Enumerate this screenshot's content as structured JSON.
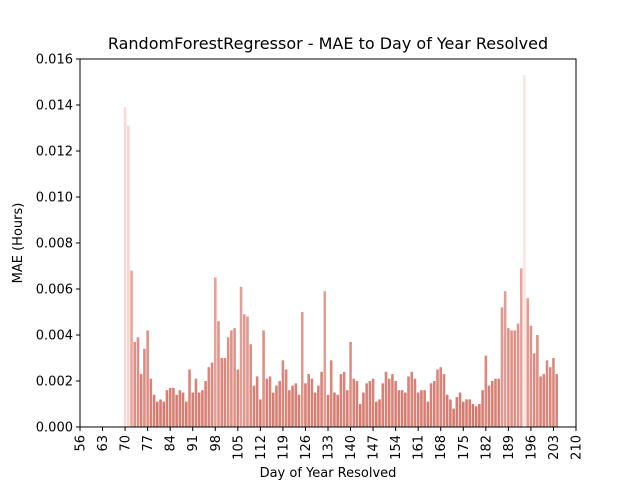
{
  "chart_data": {
    "type": "bar",
    "title": "RandomForestRegressor - MAE to Day of Year Resolved",
    "x_label": "Day of Year Resolved",
    "y_label": "MAE (Hours)",
    "x": [
      70,
      71,
      72,
      73,
      74,
      75,
      76,
      77,
      78,
      79,
      80,
      81,
      82,
      83,
      84,
      85,
      86,
      87,
      88,
      89,
      90,
      91,
      92,
      93,
      94,
      95,
      96,
      97,
      98,
      99,
      100,
      101,
      102,
      103,
      104,
      105,
      106,
      107,
      108,
      109,
      110,
      111,
      112,
      113,
      114,
      115,
      116,
      117,
      118,
      119,
      120,
      121,
      122,
      123,
      124,
      125,
      126,
      127,
      128,
      129,
      130,
      131,
      132,
      133,
      134,
      135,
      136,
      137,
      138,
      139,
      140,
      141,
      142,
      143,
      144,
      145,
      146,
      147,
      148,
      149,
      150,
      151,
      152,
      153,
      154,
      155,
      156,
      157,
      158,
      159,
      160,
      161,
      162,
      163,
      164,
      165,
      166,
      167,
      168,
      169,
      170,
      171,
      172,
      173,
      174,
      175,
      176,
      177,
      178,
      179,
      180,
      181,
      182,
      183,
      184,
      185,
      186,
      187,
      188,
      189,
      190,
      191,
      192,
      193,
      194,
      195,
      196,
      197,
      198,
      199,
      200,
      201,
      202,
      203,
      204
    ],
    "values": [
      0.0139,
      0.0131,
      0.0068,
      0.0037,
      0.0039,
      0.0023,
      0.0034,
      0.0042,
      0.0021,
      0.0014,
      0.0011,
      0.0012,
      0.0011,
      0.0016,
      0.0017,
      0.0017,
      0.0014,
      0.0016,
      0.0015,
      0.0011,
      0.0025,
      0.0015,
      0.0021,
      0.0015,
      0.0016,
      0.002,
      0.0026,
      0.0028,
      0.0065,
      0.0046,
      0.003,
      0.003,
      0.0039,
      0.0042,
      0.0043,
      0.0025,
      0.0061,
      0.0049,
      0.0048,
      0.0036,
      0.0018,
      0.0022,
      0.0012,
      0.0042,
      0.0021,
      0.0022,
      0.0015,
      0.0018,
      0.002,
      0.0029,
      0.0025,
      0.0016,
      0.0018,
      0.0019,
      0.0014,
      0.005,
      0.0019,
      0.0023,
      0.0021,
      0.0015,
      0.0018,
      0.0024,
      0.0059,
      0.0014,
      0.0029,
      0.0015,
      0.0014,
      0.0023,
      0.0024,
      0.0016,
      0.0037,
      0.0021,
      0.002,
      0.001,
      0.0015,
      0.0019,
      0.002,
      0.0021,
      0.0011,
      0.0012,
      0.0019,
      0.0024,
      0.0021,
      0.0023,
      0.002,
      0.0016,
      0.0016,
      0.0015,
      0.0022,
      0.0024,
      0.0021,
      0.0015,
      0.0016,
      0.0016,
      0.0011,
      0.0019,
      0.002,
      0.0025,
      0.0026,
      0.0023,
      0.0014,
      0.0012,
      0.0008,
      0.0013,
      0.0015,
      0.0011,
      0.0012,
      0.0012,
      0.001,
      0.0009,
      0.001,
      0.0016,
      0.0031,
      0.0018,
      0.002,
      0.0021,
      0.0021,
      0.0052,
      0.0059,
      0.0043,
      0.0042,
      0.0042,
      0.0045,
      0.0069,
      0.0153,
      0.0056,
      0.0044,
      0.0032,
      0.004,
      0.0022,
      0.0023,
      0.0029,
      0.0026,
      0.003,
      0.0023
    ],
    "color_range": [
      "#d4786d",
      "#fce4df"
    ],
    "xlim": [
      56,
      210
    ],
    "xticks": [
      56,
      63,
      70,
      77,
      84,
      91,
      98,
      105,
      112,
      119,
      126,
      133,
      140,
      147,
      154,
      161,
      168,
      175,
      182,
      189,
      196,
      203,
      210
    ],
    "ylim": [
      0,
      0.016
    ],
    "yticks": [
      {
        "value": 0,
        "label": "0.000"
      },
      {
        "value": 0.002,
        "label": "0.002"
      },
      {
        "value": 0.004,
        "label": "0.004"
      },
      {
        "value": 0.006,
        "label": "0.006"
      },
      {
        "value": 0.008,
        "label": "0.008"
      },
      {
        "value": 0.01,
        "label": "0.010"
      },
      {
        "value": 0.012,
        "label": "0.012"
      },
      {
        "value": 0.014,
        "label": "0.014"
      },
      {
        "value": 0.016,
        "label": "0.016"
      }
    ]
  }
}
